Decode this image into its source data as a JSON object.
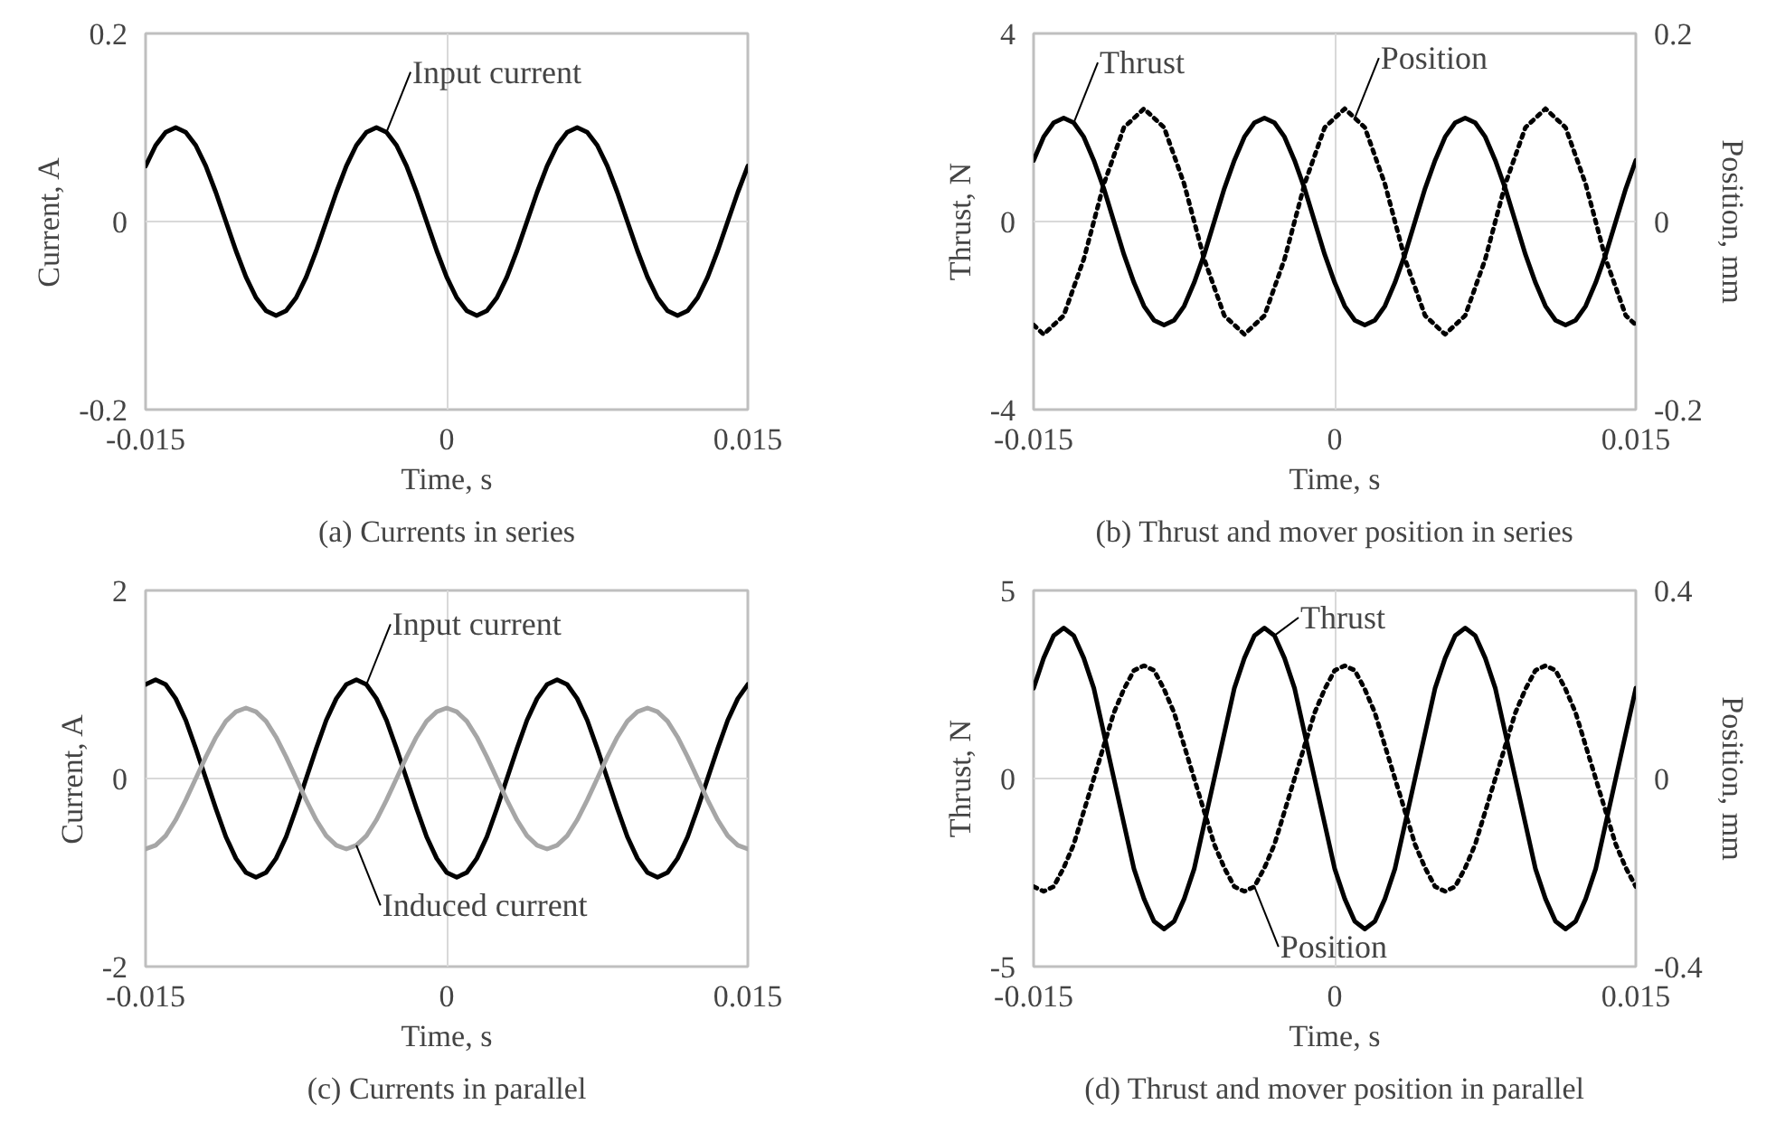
{
  "chart_data": [
    {
      "type": "line",
      "title": "(a) Currents in series",
      "xlabel": "Time, s",
      "ylabel": "Current, A",
      "x": [
        -0.015,
        -0.0145,
        -0.014,
        -0.0135,
        -0.013,
        -0.0125,
        -0.012,
        -0.0115,
        -0.011,
        -0.0105,
        -0.01,
        -0.0095,
        -0.009,
        -0.0085,
        -0.008,
        -0.0075,
        -0.007,
        -0.0065,
        -0.006,
        -0.0055,
        -0.005,
        -0.0045,
        -0.004,
        -0.0035,
        -0.003,
        -0.0025,
        -0.002,
        -0.0015,
        -0.001,
        -0.0005,
        0,
        0.0005,
        0.001,
        0.0015,
        0.002,
        0.0025,
        0.003,
        0.0035,
        0.004,
        0.0045,
        0.005,
        0.0055,
        0.006,
        0.0065,
        0.007,
        0.0075,
        0.008,
        0.0085,
        0.009,
        0.0095,
        0.01,
        0.0105,
        0.011,
        0.0115,
        0.012,
        0.0125,
        0.013,
        0.0135,
        0.014,
        0.0145,
        0.015
      ],
      "xlim": [
        -0.015,
        0.015
      ],
      "xticks": [
        -0.015,
        0,
        0.015
      ],
      "ylim": [
        -0.2,
        0.2
      ],
      "yticks": [
        -0.2,
        0,
        0.2
      ],
      "grid": true,
      "series": [
        {
          "name": "Input current",
          "color": "#000000",
          "values": [
            0.059,
            0.081,
            0.095,
            0.1,
            0.095,
            0.081,
            0.059,
            0.031,
            0,
            -0.031,
            -0.059,
            -0.081,
            -0.095,
            -0.1,
            -0.095,
            -0.081,
            -0.059,
            -0.031,
            0,
            0.031,
            0.059,
            0.081,
            0.095,
            0.1,
            0.095,
            0.081,
            0.059,
            0.031,
            0,
            -0.031,
            -0.059,
            -0.081,
            -0.095,
            -0.1,
            -0.095,
            -0.081,
            -0.059,
            -0.031,
            0,
            0.031,
            0.059,
            0.081,
            0.095,
            0.1,
            0.095,
            0.081,
            0.059,
            0.031,
            0,
            -0.031,
            -0.059,
            -0.081,
            -0.095,
            -0.1,
            -0.095,
            -0.081,
            -0.059,
            -0.031,
            0,
            0.031,
            0.059
          ]
        }
      ]
    },
    {
      "type": "line",
      "title": "(b) Thrust and mover position in series",
      "xlabel": "Time, s",
      "ylabel": "Thrust, N",
      "y2label": "Position, mm",
      "x": [
        -0.015,
        -0.0145,
        -0.014,
        -0.0135,
        -0.013,
        -0.0125,
        -0.012,
        -0.0115,
        -0.011,
        -0.0105,
        -0.01,
        -0.0095,
        -0.009,
        -0.0085,
        -0.008,
        -0.0075,
        -0.007,
        -0.0065,
        -0.006,
        -0.0055,
        -0.005,
        -0.0045,
        -0.004,
        -0.0035,
        -0.003,
        -0.0025,
        -0.002,
        -0.0015,
        -0.001,
        -0.0005,
        0,
        0.0005,
        0.001,
        0.0015,
        0.002,
        0.0025,
        0.003,
        0.0035,
        0.004,
        0.0045,
        0.005,
        0.0055,
        0.006,
        0.0065,
        0.007,
        0.0075,
        0.008,
        0.0085,
        0.009,
        0.0095,
        0.01,
        0.0105,
        0.011,
        0.0115,
        0.012,
        0.0125,
        0.013,
        0.0135,
        0.014,
        0.0145,
        0.015
      ],
      "xlim": [
        -0.015,
        0.015
      ],
      "xticks": [
        -0.015,
        0,
        0.015
      ],
      "ylim": [
        -4,
        4
      ],
      "yticks": [
        -4,
        0,
        4
      ],
      "y2lim": [
        -0.2,
        0.2
      ],
      "y2ticks": [
        -0.2,
        0,
        0.2
      ],
      "grid": true,
      "series": [
        {
          "name": "Thrust",
          "color": "#000000",
          "line_style": "solid",
          "values": [
            1.3,
            1.8,
            2.1,
            2.2,
            2.1,
            1.8,
            1.3,
            0.7,
            0,
            -0.7,
            -1.3,
            -1.8,
            -2.1,
            -2.2,
            -2.1,
            -1.8,
            -1.3,
            -0.7,
            0,
            0.7,
            1.3,
            1.8,
            2.1,
            2.2,
            2.1,
            1.8,
            1.3,
            0.7,
            0,
            -0.7,
            -1.3,
            -1.8,
            -2.1,
            -2.2,
            -2.1,
            -1.8,
            -1.3,
            -0.7,
            0,
            0.7,
            1.3,
            1.8,
            2.1,
            2.2,
            2.1,
            1.8,
            1.3,
            0.7,
            0,
            -0.7,
            -1.3,
            -1.8,
            -2.1,
            -2.2,
            -2.1,
            -1.8,
            -1.3,
            -0.7,
            0,
            0.7,
            1.3
          ]
        },
        {
          "name": "Position",
          "color": "#000000",
          "line_style": "dotted",
          "axis": "y2",
          "values": [
            -0.11,
            -0.12,
            -0.11,
            -0.1,
            -0.07,
            -0.04,
            0,
            0.04,
            0.07,
            0.1,
            0.11,
            0.12,
            0.11,
            0.1,
            0.07,
            0.04,
            0,
            -0.04,
            -0.07,
            -0.1,
            -0.11,
            -0.12,
            -0.11,
            -0.1,
            -0.07,
            -0.04,
            0,
            0.04,
            0.07,
            0.1,
            0.11,
            0.12,
            0.11,
            0.1,
            0.07,
            0.04,
            0,
            -0.04,
            -0.07,
            -0.1,
            -0.11,
            -0.12,
            -0.11,
            -0.1,
            -0.07,
            -0.04,
            0,
            0.04,
            0.07,
            0.1,
            0.11,
            0.12,
            0.11,
            0.1,
            0.07,
            0.04,
            0,
            -0.04,
            -0.07,
            -0.1,
            -0.11
          ]
        }
      ]
    },
    {
      "type": "line",
      "title": "(c) Currents in parallel",
      "xlabel": "Time, s",
      "ylabel": "Current, A",
      "x": [
        -0.015,
        -0.0145,
        -0.014,
        -0.0135,
        -0.013,
        -0.0125,
        -0.012,
        -0.0115,
        -0.011,
        -0.0105,
        -0.01,
        -0.0095,
        -0.009,
        -0.0085,
        -0.008,
        -0.0075,
        -0.007,
        -0.0065,
        -0.006,
        -0.0055,
        -0.005,
        -0.0045,
        -0.004,
        -0.0035,
        -0.003,
        -0.0025,
        -0.002,
        -0.0015,
        -0.001,
        -0.0005,
        0,
        0.0005,
        0.001,
        0.0015,
        0.002,
        0.0025,
        0.003,
        0.0035,
        0.004,
        0.0045,
        0.005,
        0.0055,
        0.006,
        0.0065,
        0.007,
        0.0075,
        0.008,
        0.0085,
        0.009,
        0.0095,
        0.01,
        0.0105,
        0.011,
        0.0115,
        0.012,
        0.0125,
        0.013,
        0.0135,
        0.014,
        0.0145,
        0.015
      ],
      "xlim": [
        -0.015,
        0.015
      ],
      "xticks": [
        -0.015,
        0,
        0.015
      ],
      "ylim": [
        -2,
        2
      ],
      "yticks": [
        -2,
        0,
        2
      ],
      "grid": true,
      "series": [
        {
          "name": "Input current",
          "color": "#000000",
          "values": [
            1.0,
            1.05,
            1.0,
            0.85,
            0.62,
            0.32,
            0,
            -0.32,
            -0.62,
            -0.85,
            -1.0,
            -1.05,
            -1.0,
            -0.85,
            -0.62,
            -0.32,
            0,
            0.32,
            0.62,
            0.85,
            1.0,
            1.05,
            1.0,
            0.85,
            0.62,
            0.32,
            0,
            -0.32,
            -0.62,
            -0.85,
            -1.0,
            -1.05,
            -1.0,
            -0.85,
            -0.62,
            -0.32,
            0,
            0.32,
            0.62,
            0.85,
            1.0,
            1.05,
            1.0,
            0.85,
            0.62,
            0.32,
            0,
            -0.32,
            -0.62,
            -0.85,
            -1.0,
            -1.05,
            -1.0,
            -0.85,
            -0.62,
            -0.32,
            0,
            0.32,
            0.62,
            0.85,
            1.0
          ]
        },
        {
          "name": "Induced current",
          "color": "#a6a6a6",
          "values": [
            -0.75,
            -0.71,
            -0.61,
            -0.44,
            -0.23,
            0,
            0.23,
            0.44,
            0.61,
            0.71,
            0.75,
            0.71,
            0.61,
            0.44,
            0.23,
            0,
            -0.23,
            -0.44,
            -0.61,
            -0.71,
            -0.75,
            -0.71,
            -0.61,
            -0.44,
            -0.23,
            0,
            0.23,
            0.44,
            0.61,
            0.71,
            0.75,
            0.71,
            0.61,
            0.44,
            0.23,
            0,
            -0.23,
            -0.44,
            -0.61,
            -0.71,
            -0.75,
            -0.71,
            -0.61,
            -0.44,
            -0.23,
            0,
            0.23,
            0.44,
            0.61,
            0.71,
            0.75,
            0.71,
            0.61,
            0.44,
            0.23,
            0,
            -0.23,
            -0.44,
            -0.61,
            -0.71,
            -0.75
          ]
        }
      ]
    },
    {
      "type": "line",
      "title": "(d) Thrust and mover position in parallel",
      "xlabel": "Time, s",
      "ylabel": "Thrust, N",
      "y2label": "Position, mm",
      "x": [
        -0.015,
        -0.0145,
        -0.014,
        -0.0135,
        -0.013,
        -0.0125,
        -0.012,
        -0.0115,
        -0.011,
        -0.0105,
        -0.01,
        -0.0095,
        -0.009,
        -0.0085,
        -0.008,
        -0.0075,
        -0.007,
        -0.0065,
        -0.006,
        -0.0055,
        -0.005,
        -0.0045,
        -0.004,
        -0.0035,
        -0.003,
        -0.0025,
        -0.002,
        -0.0015,
        -0.001,
        -0.0005,
        0,
        0.0005,
        0.001,
        0.0015,
        0.002,
        0.0025,
        0.003,
        0.0035,
        0.004,
        0.0045,
        0.005,
        0.0055,
        0.006,
        0.0065,
        0.007,
        0.0075,
        0.008,
        0.0085,
        0.009,
        0.0095,
        0.01,
        0.0105,
        0.011,
        0.0115,
        0.012,
        0.0125,
        0.013,
        0.0135,
        0.014,
        0.0145,
        0.015
      ],
      "xlim": [
        -0.015,
        0.015
      ],
      "xticks": [
        -0.015,
        0,
        0.015
      ],
      "ylim": [
        -5,
        5
      ],
      "yticks": [
        -5,
        0,
        5
      ],
      "y2lim": [
        -0.4,
        0.4
      ],
      "y2ticks": [
        -0.4,
        0,
        0.4
      ],
      "grid": true,
      "series": [
        {
          "name": "Thrust",
          "color": "#000000",
          "line_style": "solid",
          "values": [
            2.4,
            3.2,
            3.8,
            4,
            3.8,
            3.2,
            2.4,
            1.2,
            0,
            -1.2,
            -2.4,
            -3.2,
            -3.8,
            -4,
            -3.8,
            -3.2,
            -2.4,
            -1.2,
            0,
            1.2,
            2.4,
            3.2,
            3.8,
            4,
            3.8,
            3.2,
            2.4,
            1.2,
            0,
            -1.2,
            -2.4,
            -3.2,
            -3.8,
            -4,
            -3.8,
            -3.2,
            -2.4,
            -1.2,
            0,
            1.2,
            2.4,
            3.2,
            3.8,
            4,
            3.8,
            3.2,
            2.4,
            1.2,
            0,
            -1.2,
            -2.4,
            -3.2,
            -3.8,
            -4,
            -3.8,
            -3.2,
            -2.4,
            -1.2,
            0,
            1.2,
            2.4
          ]
        },
        {
          "name": "Position",
          "color": "#000000",
          "line_style": "dotted",
          "axis": "y2",
          "values": [
            -0.23,
            -0.24,
            -0.23,
            -0.19,
            -0.14,
            -0.07,
            0,
            0.07,
            0.14,
            0.19,
            0.23,
            0.24,
            0.23,
            0.19,
            0.14,
            0.07,
            0,
            -0.07,
            -0.14,
            -0.19,
            -0.23,
            -0.24,
            -0.23,
            -0.19,
            -0.14,
            -0.07,
            0,
            0.07,
            0.14,
            0.19,
            0.23,
            0.24,
            0.23,
            0.19,
            0.14,
            0.07,
            0,
            -0.07,
            -0.14,
            -0.19,
            -0.23,
            -0.24,
            -0.23,
            -0.19,
            -0.14,
            -0.07,
            0,
            0.07,
            0.14,
            0.19,
            0.23,
            0.24,
            0.23,
            0.19,
            0.14,
            0.07,
            0,
            -0.07,
            -0.14,
            -0.19,
            -0.23
          ]
        }
      ]
    }
  ]
}
